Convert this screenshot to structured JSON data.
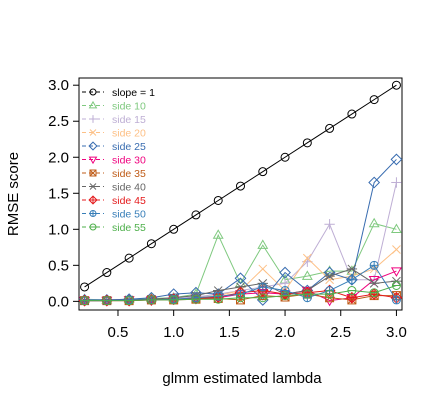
{
  "chart_data": {
    "type": "line",
    "title": "",
    "xlabel": "glmm estimated lambda",
    "ylabel": "RMSE score",
    "xlim": [
      0.15,
      3.05
    ],
    "ylim": [
      -0.12,
      3.1
    ],
    "xticks": [
      0.5,
      1.0,
      1.5,
      2.0,
      2.5,
      3.0
    ],
    "xtick_labels": [
      "0.5",
      "1.0",
      "1.5",
      "2.0",
      "2.5",
      "3.0"
    ],
    "yticks": [
      0.0,
      0.5,
      1.0,
      1.5,
      2.0,
      2.5,
      3.0
    ],
    "ytick_labels": [
      "0.0",
      "0.5",
      "1.0",
      "1.5",
      "2.0",
      "2.5",
      "3.0"
    ],
    "grid": false,
    "legend_position": "top-left",
    "x": [
      0.2,
      0.4,
      0.6,
      0.8,
      1.0,
      1.2,
      1.4,
      1.6,
      1.8,
      2.0,
      2.2,
      2.4,
      2.6,
      2.8,
      3.0
    ],
    "series": [
      {
        "name": "slope = 1",
        "color": "#000000",
        "marker": "circle",
        "values": [
          0.2,
          0.4,
          0.6,
          0.8,
          1.0,
          1.2,
          1.4,
          1.6,
          1.8,
          2.0,
          2.2,
          2.4,
          2.6,
          2.8,
          3.0
        ]
      },
      {
        "name": "side 10",
        "color": "#7fc97f",
        "marker": "triangle-up",
        "values": [
          0.03,
          0.02,
          0.03,
          0.04,
          0.05,
          0.1,
          0.92,
          0.25,
          0.78,
          0.3,
          0.35,
          0.42,
          0.42,
          1.08,
          1.0
        ]
      },
      {
        "name": "side 15",
        "color": "#beaed4",
        "marker": "plus",
        "values": [
          0.02,
          0.02,
          0.02,
          0.03,
          0.04,
          0.06,
          0.1,
          0.15,
          0.2,
          0.25,
          0.55,
          1.07,
          0.3,
          0.3,
          1.65
        ]
      },
      {
        "name": "side 20",
        "color": "#fdc086",
        "marker": "x",
        "values": [
          0.01,
          0.01,
          0.02,
          0.02,
          0.03,
          0.05,
          0.08,
          0.15,
          0.45,
          0.15,
          0.6,
          0.3,
          0.35,
          0.45,
          0.72
        ]
      },
      {
        "name": "side 25",
        "color": "#386cb0",
        "marker": "diamond",
        "values": [
          0.02,
          0.02,
          0.03,
          0.05,
          0.1,
          0.12,
          0.1,
          0.32,
          0.02,
          0.4,
          0.15,
          0.4,
          0.3,
          1.65,
          1.97
        ]
      },
      {
        "name": "side 30",
        "color": "#f0027f",
        "marker": "triangle-down",
        "values": [
          0.01,
          0.01,
          0.02,
          0.02,
          0.03,
          0.04,
          0.05,
          0.1,
          0.12,
          0.1,
          0.15,
          0.01,
          0.05,
          0.3,
          0.42
        ]
      },
      {
        "name": "side 35",
        "color": "#bf5b17",
        "marker": "square-x",
        "values": [
          0.01,
          0.01,
          0.01,
          0.02,
          0.02,
          0.03,
          0.04,
          0.02,
          0.08,
          0.06,
          0.1,
          0.05,
          0.02,
          0.08,
          0.08
        ]
      },
      {
        "name": "side 40",
        "color": "#666666",
        "marker": "asterisk",
        "values": [
          0.01,
          0.01,
          0.02,
          0.03,
          0.05,
          0.08,
          0.15,
          0.2,
          0.25,
          0.1,
          0.15,
          0.35,
          0.45,
          0.25,
          0.28
        ]
      },
      {
        "name": "side 45",
        "color": "#e41a1c",
        "marker": "diamond-plus",
        "values": [
          0.01,
          0.01,
          0.01,
          0.02,
          0.03,
          0.04,
          0.06,
          0.12,
          0.15,
          0.1,
          0.12,
          0.15,
          0.05,
          0.1,
          0.05
        ]
      },
      {
        "name": "side 50",
        "color": "#377eb8",
        "marker": "circle-plus",
        "values": [
          0.01,
          0.01,
          0.02,
          0.02,
          0.03,
          0.05,
          0.07,
          0.1,
          0.2,
          0.15,
          0.05,
          0.15,
          0.3,
          0.5,
          0.02
        ]
      },
      {
        "name": "side 55",
        "color": "#4daf4a",
        "marker": "circle-minus",
        "values": [
          0.01,
          0.01,
          0.01,
          0.02,
          0.02,
          0.03,
          0.03,
          0.05,
          0.05,
          0.08,
          0.1,
          0.1,
          0.15,
          0.12,
          0.22
        ]
      }
    ]
  }
}
